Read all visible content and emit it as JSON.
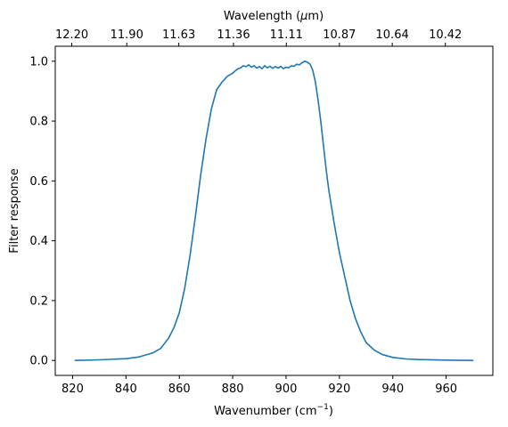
{
  "chart_data": {
    "type": "line",
    "xlabel_main": "Wavenumber (cm",
    "xlabel_sup": "−1",
    "xlabel_close": ")",
    "ylabel": "Filter response",
    "top_xlabel_main": "Wavelength (",
    "top_xlabel_mu": "μ",
    "top_xlabel_close": "m)",
    "xlim": [
      813.5,
      977.5
    ],
    "ylim": [
      -0.05,
      1.05
    ],
    "xticks": [
      820,
      840,
      860,
      880,
      900,
      920,
      940,
      960
    ],
    "xtick_labels": [
      "820",
      "840",
      "860",
      "880",
      "900",
      "920",
      "940",
      "960"
    ],
    "yticks": [
      0.0,
      0.2,
      0.4,
      0.6,
      0.8,
      1.0
    ],
    "ytick_labels": [
      "0.0",
      "0.2",
      "0.4",
      "0.6",
      "0.8",
      "1.0"
    ],
    "top_ticks": [
      819.7,
      840.3,
      859.8,
      880.3,
      900.1,
      920.0,
      939.8,
      959.7
    ],
    "top_tick_labels": [
      "12.20",
      "11.90",
      "11.63",
      "11.36",
      "11.11",
      "10.87",
      "10.64",
      "10.42"
    ],
    "grid": false,
    "series": [
      {
        "color": "#1f77b4",
        "x": [
          821,
          830,
          840,
          845,
          850,
          853,
          856,
          858,
          860,
          862,
          864,
          866,
          868,
          870,
          872,
          874,
          876,
          878,
          880,
          881,
          882,
          883,
          884,
          885,
          886,
          887,
          888,
          889,
          890,
          891,
          892,
          893,
          894,
          895,
          896,
          897,
          898,
          899,
          900,
          901,
          902,
          903,
          904,
          905,
          906,
          907,
          908,
          909,
          910,
          911,
          912,
          913,
          914,
          915,
          916,
          918,
          920,
          922,
          924,
          926,
          928,
          930,
          933,
          936,
          940,
          945,
          950,
          960,
          970
        ],
        "y": [
          0.0,
          0.002,
          0.006,
          0.012,
          0.025,
          0.04,
          0.075,
          0.11,
          0.16,
          0.24,
          0.35,
          0.48,
          0.62,
          0.74,
          0.84,
          0.905,
          0.93,
          0.95,
          0.96,
          0.968,
          0.975,
          0.978,
          0.985,
          0.982,
          0.988,
          0.98,
          0.985,
          0.977,
          0.982,
          0.975,
          0.985,
          0.978,
          0.983,
          0.976,
          0.982,
          0.977,
          0.983,
          0.975,
          0.98,
          0.978,
          0.985,
          0.983,
          0.99,
          0.988,
          0.995,
          1.0,
          0.997,
          0.99,
          0.97,
          0.93,
          0.87,
          0.8,
          0.72,
          0.64,
          0.57,
          0.46,
          0.36,
          0.28,
          0.2,
          0.14,
          0.095,
          0.06,
          0.035,
          0.02,
          0.01,
          0.005,
          0.003,
          0.001,
          0.0
        ]
      }
    ]
  }
}
